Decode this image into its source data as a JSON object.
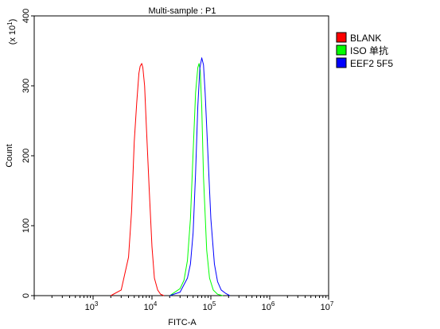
{
  "chart_data": {
    "type": "line",
    "title": "Multi-sample : P1",
    "xlabel": "FITC-A",
    "ylabel": "Count",
    "y_multiplier_label": "(x 10",
    "y_multiplier_exp": "1",
    "y_multiplier_close": ")",
    "x_scale": "log",
    "xlim": [
      100,
      10000000
    ],
    "ylim": [
      0,
      400
    ],
    "x_ticks": [
      {
        "base": "10",
        "exp": "3",
        "value": 1000
      },
      {
        "base": "10",
        "exp": "4",
        "value": 10000
      },
      {
        "base": "10",
        "exp": "5",
        "value": 100000
      },
      {
        "base": "10",
        "exp": "6",
        "value": 1000000
      },
      {
        "base": "10",
        "exp": "7",
        "value": 10000000
      }
    ],
    "y_ticks": [
      {
        "label": "0",
        "value": 0
      },
      {
        "label": "100",
        "value": 100
      },
      {
        "label": "200",
        "value": 200
      },
      {
        "label": "300",
        "value": 300
      },
      {
        "label": "400",
        "value": 400
      }
    ],
    "grid": false,
    "legend_position": "right",
    "series": [
      {
        "name": "BLANK",
        "color": "#ff0000",
        "x": [
          2000,
          3000,
          4000,
          4500,
          5000,
          5500,
          6000,
          6300,
          6700,
          7000,
          7500,
          8000,
          9000,
          10000,
          11000,
          12500,
          14000,
          16000
        ],
        "y": [
          0,
          8,
          55,
          120,
          220,
          275,
          318,
          328,
          332,
          326,
          300,
          245,
          150,
          70,
          25,
          8,
          2,
          0
        ]
      },
      {
        "name": "ISO 单抗",
        "color": "#00ff00",
        "x": [
          20000,
          30000,
          35000,
          40000,
          45000,
          50000,
          55000,
          60000,
          63000,
          66000,
          70000,
          75000,
          85000,
          95000,
          110000,
          130000,
          160000
        ],
        "y": [
          0,
          10,
          22,
          50,
          110,
          205,
          290,
          326,
          332,
          322,
          270,
          170,
          65,
          25,
          8,
          2,
          0
        ]
      },
      {
        "name": "EEF2 5F5",
        "color": "#0000ff",
        "x": [
          20000,
          30000,
          40000,
          45000,
          50000,
          55000,
          60000,
          65000,
          70000,
          75000,
          80000,
          90000,
          100000,
          115000,
          130000,
          150000,
          180000,
          210000
        ],
        "y": [
          0,
          5,
          25,
          45,
          90,
          175,
          270,
          325,
          340,
          330,
          290,
          195,
          110,
          45,
          20,
          8,
          3,
          0
        ]
      }
    ]
  }
}
